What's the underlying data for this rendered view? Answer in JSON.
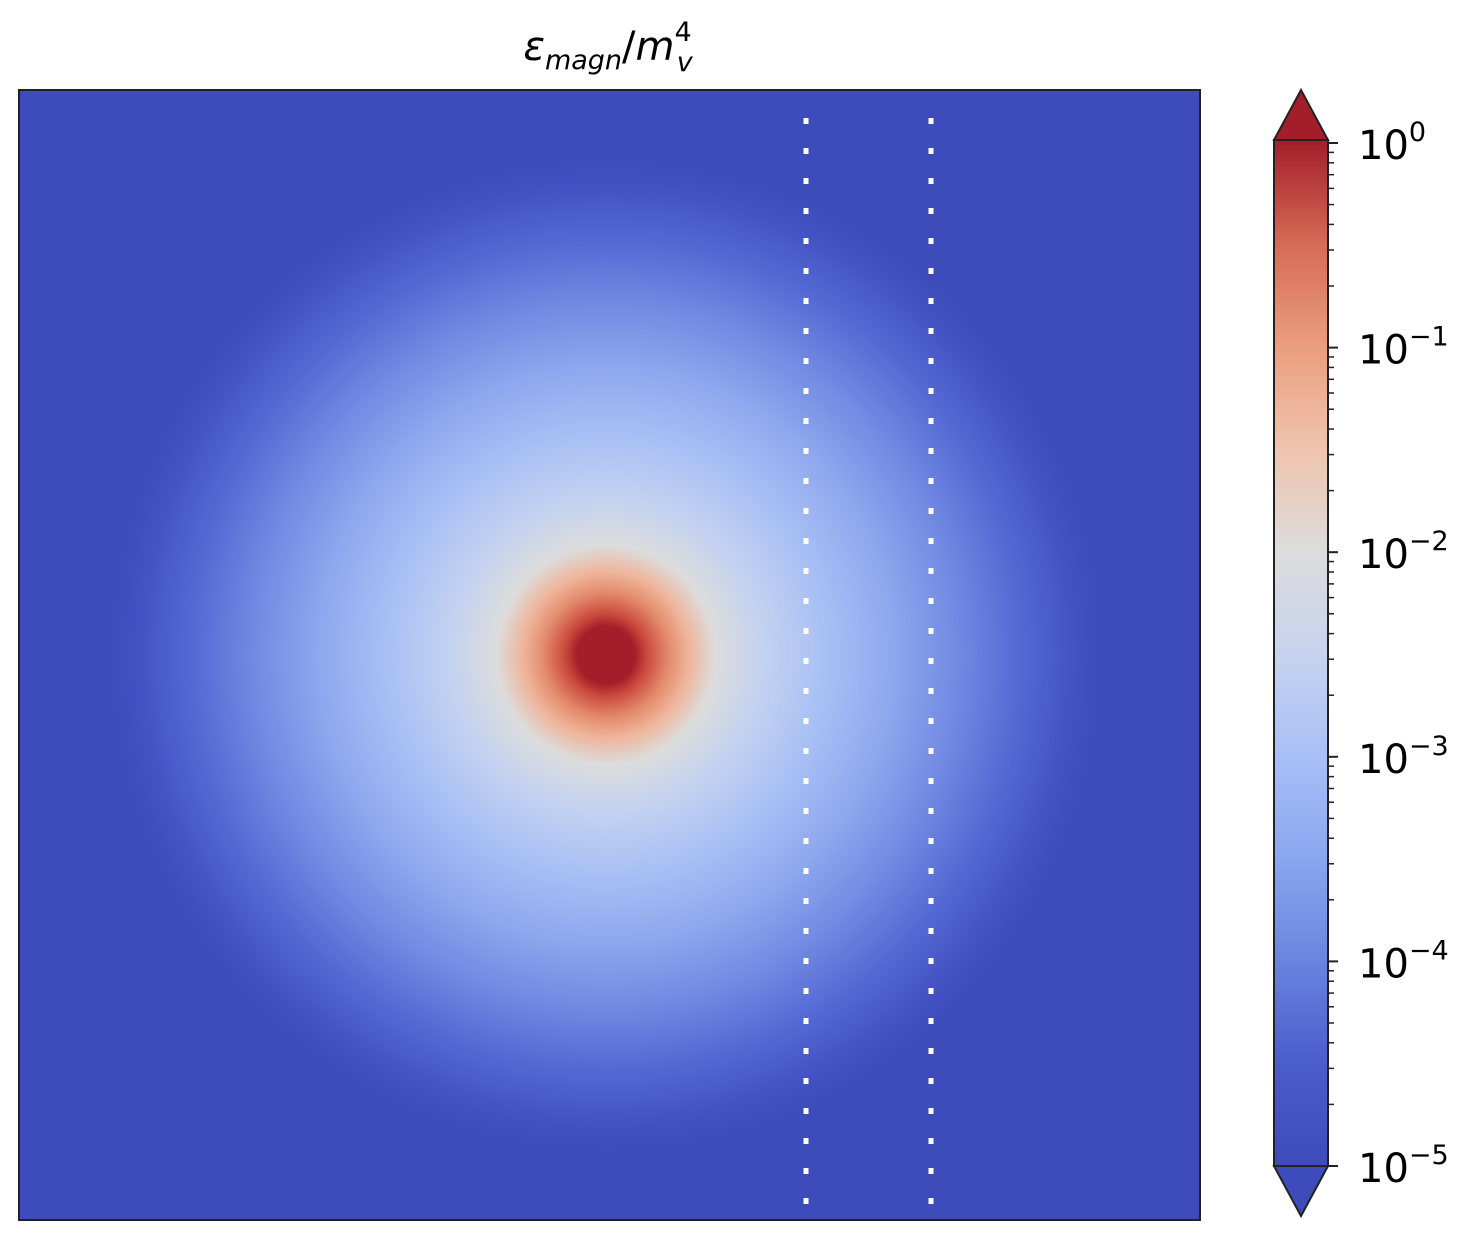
{
  "chart_data": {
    "type": "heatmap",
    "title": {
      "base": "ε",
      "base_subscript": "magn",
      "separator": "/",
      "denominator": "m",
      "denominator_superscript": "4",
      "denominator_subscript": "v"
    },
    "colormap": "coolwarm",
    "color_scale": "log",
    "color_range": [
      1e-05,
      1
    ],
    "colorbar_extend": "both",
    "colorbar_ticks": [
      {
        "value": 1,
        "base": "10",
        "exponent": "0"
      },
      {
        "value": 0.1,
        "base": "10",
        "exponent": "−1"
      },
      {
        "value": 0.01,
        "base": "10",
        "exponent": "−2"
      },
      {
        "value": 0.001,
        "base": "10",
        "exponent": "−3"
      },
      {
        "value": 0.0001,
        "base": "10",
        "exponent": "−4"
      },
      {
        "value": 1e-05,
        "base": "10",
        "exponent": "−5"
      }
    ],
    "field": {
      "shape": "radial",
      "peak_value": 1,
      "background_value": 1e-05
    },
    "vertical_dotted_lines": 2,
    "axes_ticks_visible": false,
    "grid": false,
    "colors": {
      "low": "#3b4cc0",
      "mid": "#dddddd",
      "high": "#b40426",
      "dotted_line": "#ffffff"
    }
  }
}
